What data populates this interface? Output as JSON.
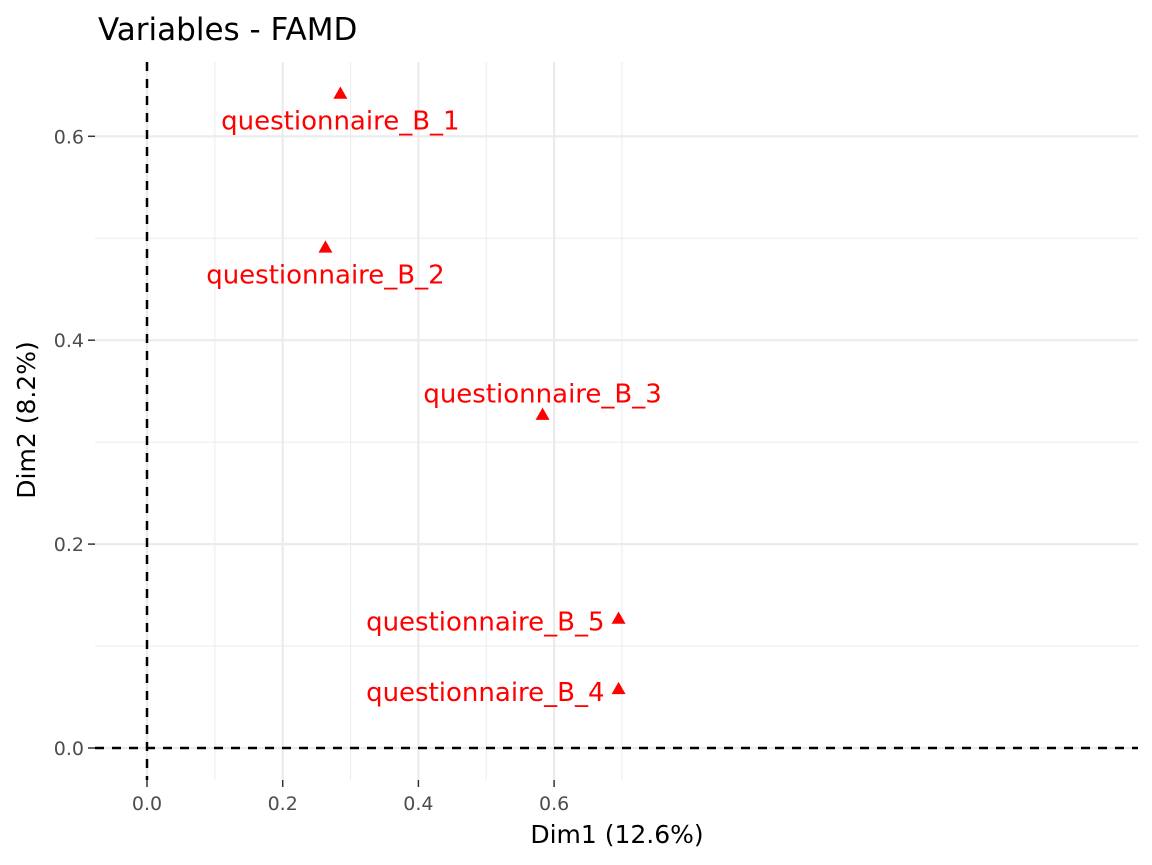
{
  "chart_data": {
    "type": "scatter",
    "title": "Variables - FAMD",
    "xlabel": "Dim1 (12.6%)",
    "ylabel": "Dim2 (8.2%)",
    "xlim": [
      -0.04,
      0.73
    ],
    "ylim": [
      -0.03,
      0.67
    ],
    "x_ticks": [
      0.0,
      0.2,
      0.4,
      0.6
    ],
    "x_tick_labels": [
      "0.0",
      "0.2",
      "0.4",
      "0.6"
    ],
    "y_ticks": [
      0.0,
      0.2,
      0.4,
      0.6
    ],
    "y_tick_labels": [
      "0.0",
      "0.2",
      "0.4",
      "0.6"
    ],
    "grid": true,
    "reference_lines": {
      "x": 0,
      "y": 0,
      "style": "dashed"
    },
    "marker": "triangle",
    "color": "#ff0000",
    "points": [
      {
        "label": "questionnaire_B_1",
        "x": 0.285,
        "y": 0.642,
        "label_position": "below"
      },
      {
        "label": "questionnaire_B_2",
        "x": 0.263,
        "y": 0.491,
        "label_position": "below"
      },
      {
        "label": "questionnaire_B_3",
        "x": 0.583,
        "y": 0.327,
        "label_position": "above"
      },
      {
        "label": "questionnaire_B_5",
        "x": 0.695,
        "y": 0.127,
        "label_position": "left"
      },
      {
        "label": "questionnaire_B_4",
        "x": 0.695,
        "y": 0.058,
        "label_position": "left"
      }
    ]
  }
}
